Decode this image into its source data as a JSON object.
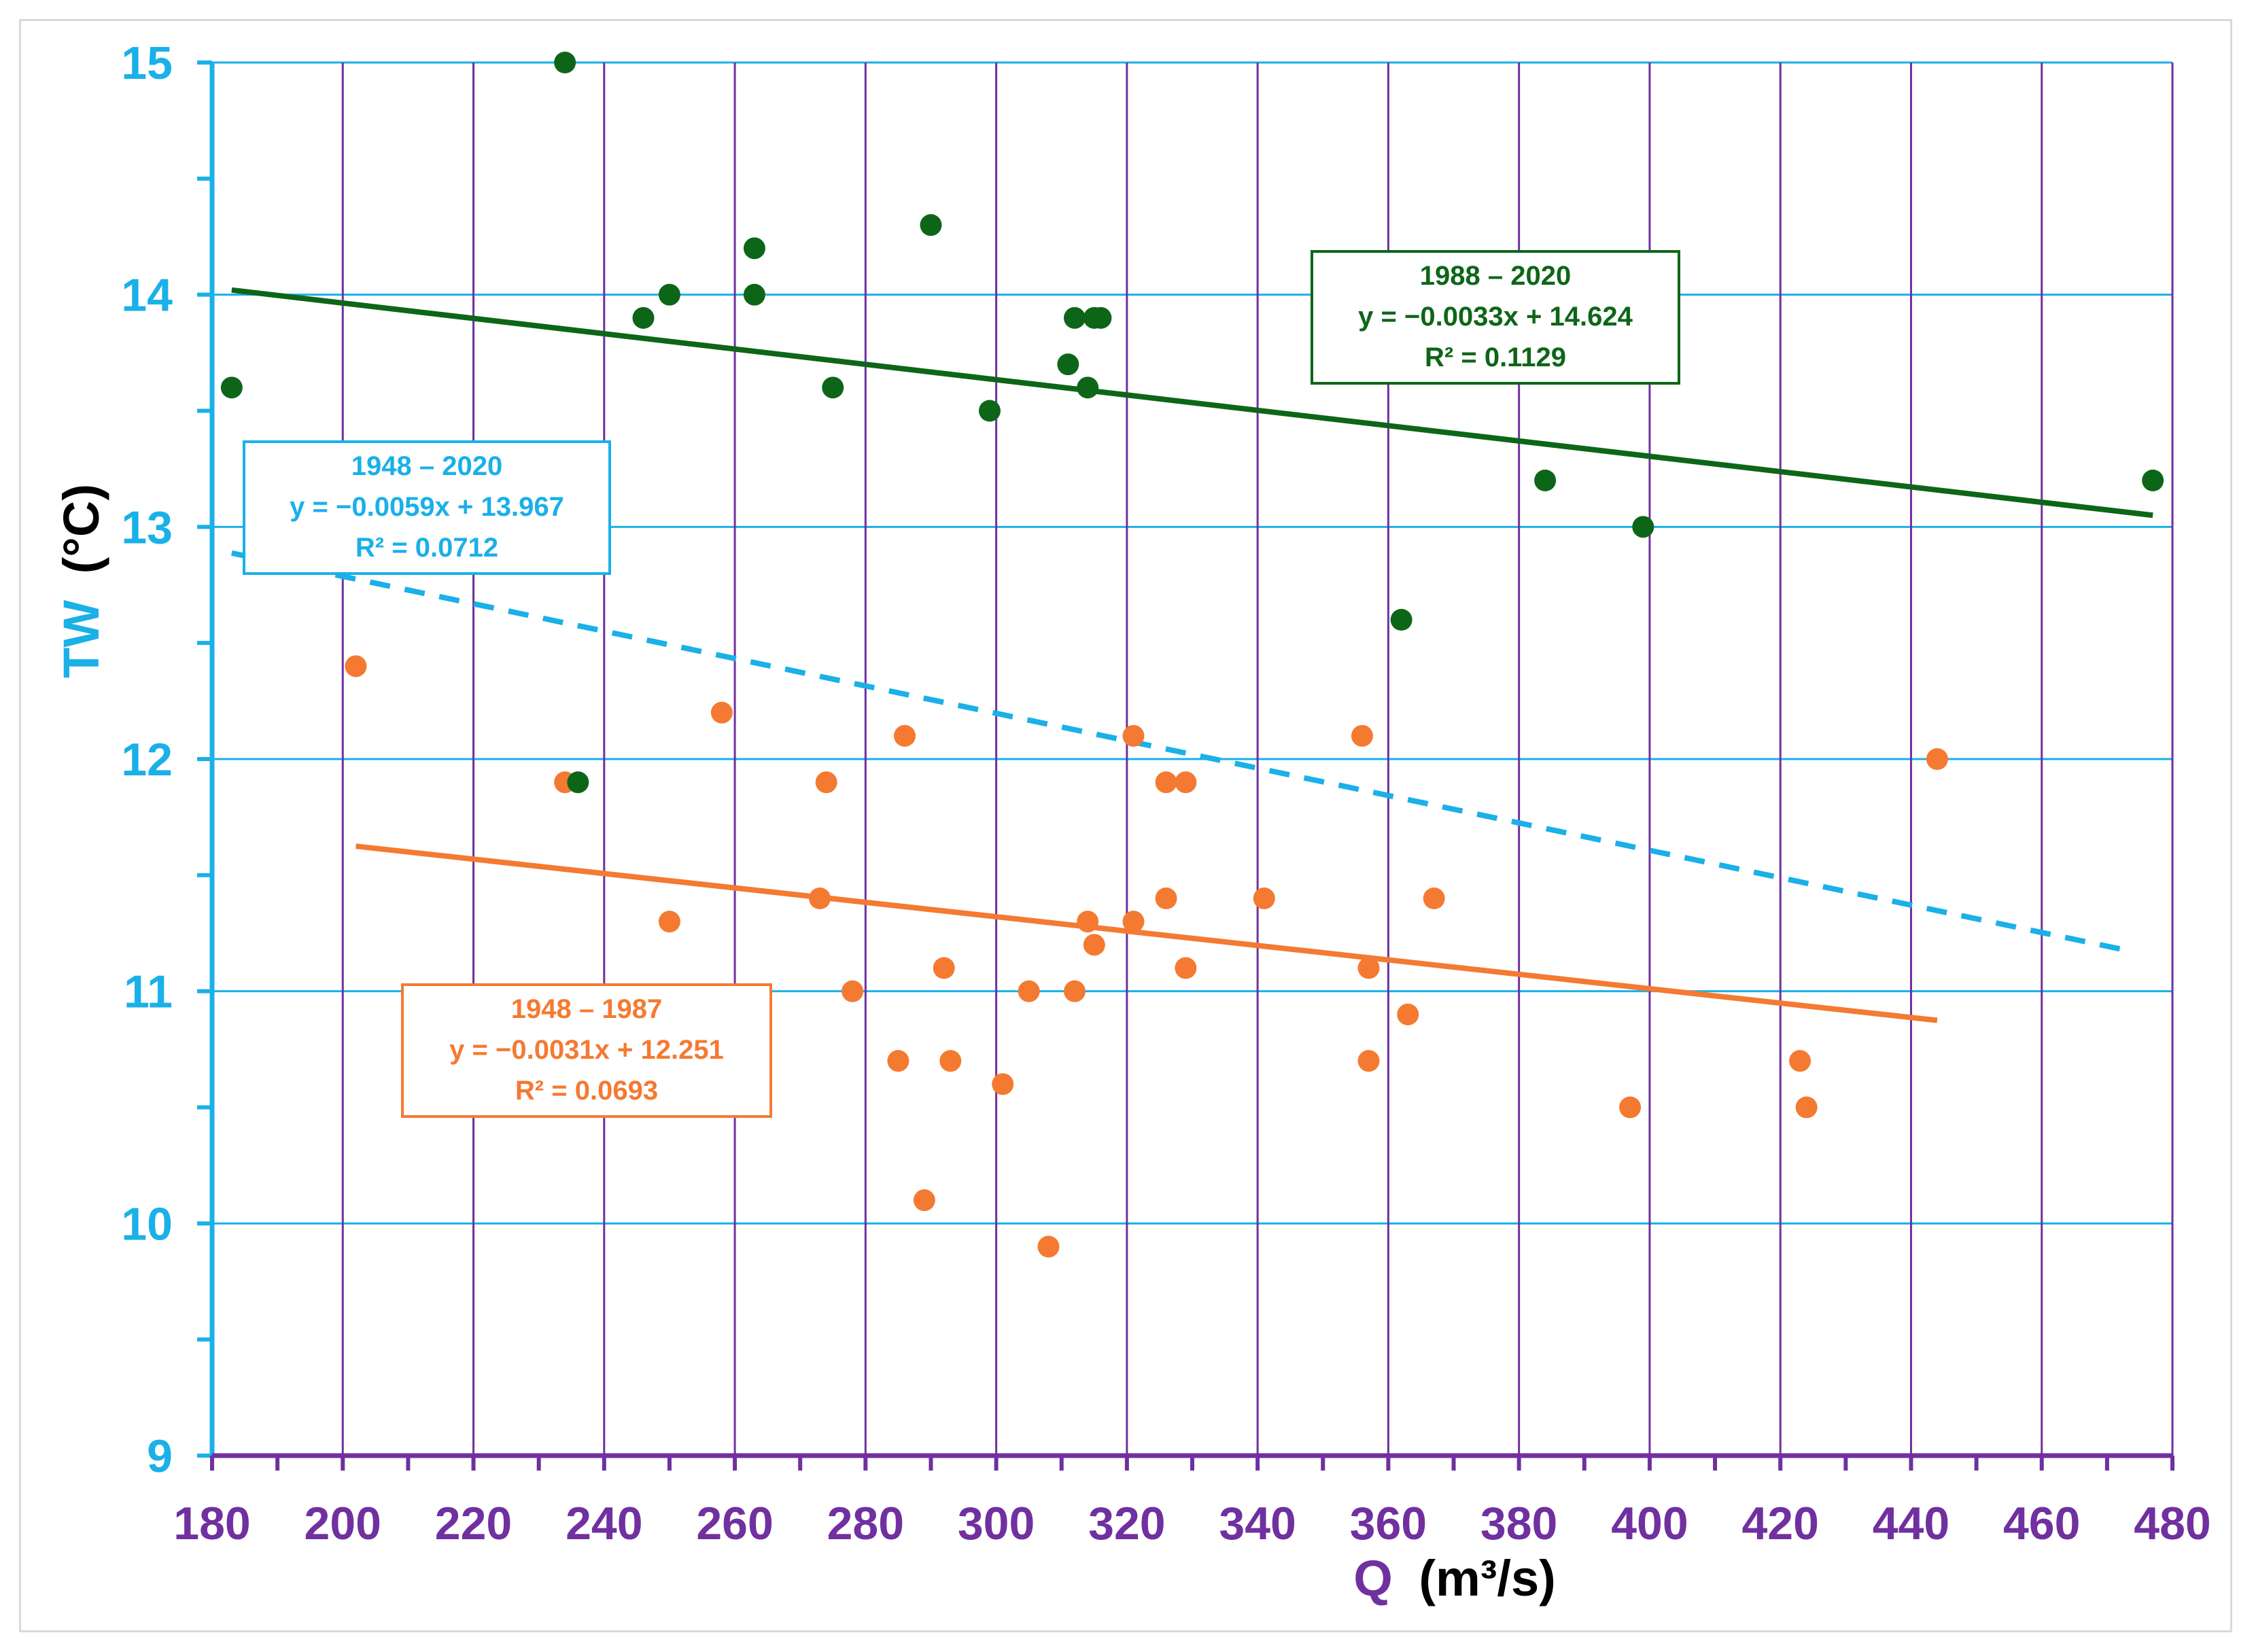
{
  "chart_data": {
    "type": "scatter",
    "xlabel": "Q",
    "xlabel_unit": "(m³/s)",
    "ylabel": "TW",
    "ylabel_unit": "(°C)",
    "xlim": [
      180,
      480
    ],
    "ylim": [
      9,
      15
    ],
    "xticks": [
      180,
      200,
      220,
      240,
      260,
      280,
      300,
      320,
      340,
      360,
      380,
      400,
      420,
      440,
      460,
      480
    ],
    "yticks": [
      9,
      10,
      11,
      12,
      13,
      14,
      15
    ],
    "grid": true,
    "colors": {
      "x_axis": "#7030a0",
      "y_axis": "#1ab0e8",
      "grid_h": "#1ab0e8",
      "grid_v": "#7030a0",
      "series_1948_1987": "#f47a32",
      "series_1988_2020": "#0d6618",
      "trend_1948_2020": "#1ab0e8"
    },
    "series": [
      {
        "name": "1948 – 1987",
        "color": "#f47a32",
        "points": [
          [
            202,
            12.4
          ],
          [
            234,
            11.9
          ],
          [
            250,
            11.3
          ],
          [
            258,
            12.2
          ],
          [
            273,
            11.4
          ],
          [
            274,
            11.9
          ],
          [
            278,
            11.0
          ],
          [
            285,
            10.7
          ],
          [
            286,
            12.1
          ],
          [
            289,
            10.1
          ],
          [
            292,
            11.1
          ],
          [
            293,
            10.7
          ],
          [
            301,
            10.6
          ],
          [
            305,
            11.0
          ],
          [
            308,
            9.9
          ],
          [
            312,
            11.0
          ],
          [
            314,
            11.3
          ],
          [
            315,
            11.2
          ],
          [
            321,
            12.1
          ],
          [
            321,
            11.3
          ],
          [
            326,
            11.9
          ],
          [
            326,
            11.4
          ],
          [
            329,
            11.9
          ],
          [
            329,
            11.1
          ],
          [
            341,
            11.4
          ],
          [
            356,
            12.1
          ],
          [
            357,
            11.1
          ],
          [
            357,
            10.7
          ],
          [
            363,
            10.9
          ],
          [
            367,
            11.4
          ],
          [
            397,
            10.5
          ],
          [
            423,
            10.7
          ],
          [
            424,
            10.5
          ],
          [
            444,
            12.0
          ]
        ]
      },
      {
        "name": "1988 – 2020",
        "color": "#0d6618",
        "points": [
          [
            183,
            13.6
          ],
          [
            234,
            15.0
          ],
          [
            236,
            11.9
          ],
          [
            246,
            13.9
          ],
          [
            250,
            14.0
          ],
          [
            263,
            14.2
          ],
          [
            263,
            14.0
          ],
          [
            275,
            13.6
          ],
          [
            290,
            14.3
          ],
          [
            299,
            13.5
          ],
          [
            311,
            13.7
          ],
          [
            312,
            13.9
          ],
          [
            314,
            13.6
          ],
          [
            315,
            13.9
          ],
          [
            316,
            13.9
          ],
          [
            362,
            12.6
          ],
          [
            384,
            13.2
          ],
          [
            399,
            13.0
          ],
          [
            477,
            13.2
          ]
        ]
      }
    ],
    "trendlines": [
      {
        "period": "1988 – 2020",
        "equation": "y = −0.0033x + 14.624",
        "r2": "R² = 0.1129",
        "slope": -0.0033,
        "intercept": 14.624,
        "x_range": [
          183,
          477
        ],
        "style": "solid",
        "color": "#0d6618"
      },
      {
        "period": "1948 – 2020",
        "equation": "y = −0.0059x + 13.967",
        "r2": "R² = 0.0712",
        "slope": -0.0059,
        "intercept": 13.967,
        "x_range": [
          183,
          474
        ],
        "style": "dashed",
        "color": "#1ab0e8"
      },
      {
        "period": "1948 – 1987",
        "equation": "y = −0.0031x + 12.251",
        "r2": "R² = 0.0693",
        "slope": -0.0031,
        "intercept": 12.251,
        "x_range": [
          202,
          444
        ],
        "style": "solid",
        "color": "#f47a32"
      }
    ]
  }
}
